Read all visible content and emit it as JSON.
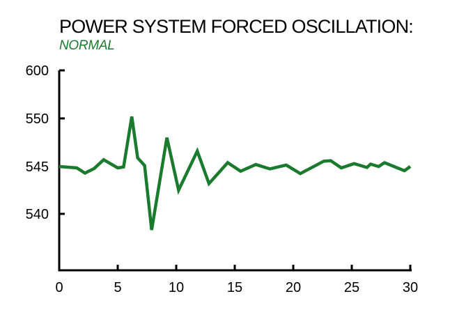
{
  "chart_data": {
    "type": "line",
    "title": "POWER SYSTEM FORCED OSCILLATION:",
    "subtitle": "NORMAL",
    "xlabel": "",
    "ylabel": "",
    "xlim": [
      0,
      30
    ],
    "ylim_labels": [
      "600",
      "550",
      "545",
      "540"
    ],
    "x_ticks": [
      "0",
      "5",
      "10",
      "15",
      "20",
      "25",
      "30"
    ],
    "grid": false,
    "colors": {
      "line": "#1a7a2e",
      "subtitle": "#1a7a2e",
      "axis": "#000000"
    },
    "series": [
      {
        "x": [
          0,
          1.5,
          2.2,
          3.0,
          3.8,
          5.0,
          5.5,
          6.2,
          6.7,
          7.3,
          7.9,
          9.2,
          10.2,
          11.8,
          12.8,
          14.4,
          15.5,
          16.8,
          18.0,
          19.4,
          20.6,
          22.6,
          23.2,
          24.1,
          25.2,
          26.3,
          26.6,
          27.3,
          27.8,
          29.5,
          30
        ],
        "y": [
          545.0,
          544.85,
          544.3,
          544.8,
          545.7,
          544.85,
          544.95,
          551.9,
          545.9,
          545.1,
          538.3,
          548.0,
          542.5,
          546.6,
          543.2,
          545.4,
          544.5,
          545.2,
          544.75,
          545.15,
          544.25,
          545.55,
          545.6,
          544.85,
          545.3,
          544.9,
          545.25,
          545.0,
          545.4,
          544.55,
          545.0
        ]
      }
    ]
  }
}
